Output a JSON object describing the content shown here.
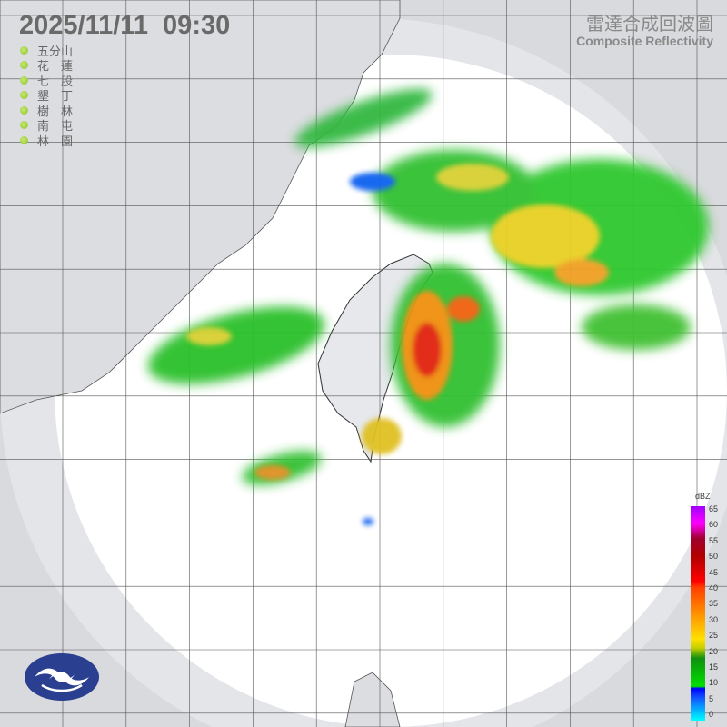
{
  "header": {
    "timestamp": "2025/11/11  09:30"
  },
  "title": {
    "zh": "雷達合成回波圖",
    "en": "Composite Reflectivity"
  },
  "stations": [
    {
      "name": "五分山",
      "status_color": "#9acd40"
    },
    {
      "name": "花　蓮",
      "status_color": "#9acd40"
    },
    {
      "name": "七　股",
      "status_color": "#9acd40"
    },
    {
      "name": "墾　丁",
      "status_color": "#9acd40"
    },
    {
      "name": "樹　林",
      "status_color": "#9acd40"
    },
    {
      "name": "南　屯",
      "status_color": "#9acd40"
    },
    {
      "name": "林　園",
      "status_color": "#9acd40"
    }
  ],
  "colorbar": {
    "unit": "dBZ",
    "labels": [
      "65",
      "60",
      "55",
      "50",
      "45",
      "40",
      "35",
      "30",
      "25",
      "20",
      "15",
      "10",
      "5",
      "0"
    ]
  },
  "logo": {
    "name": "cwa-logo"
  }
}
